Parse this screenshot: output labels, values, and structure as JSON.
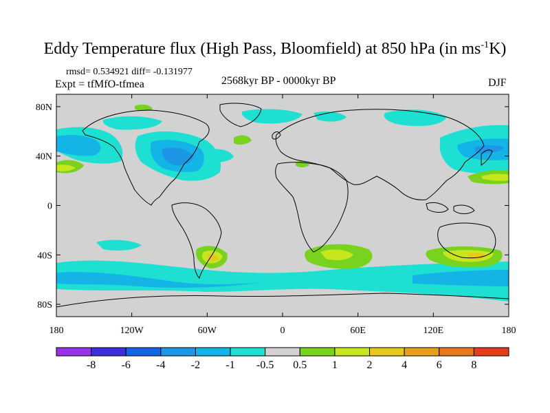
{
  "title": {
    "main": "Eddy Temperature flux (High Pass, Bloomfield) at 850 hPa (in ms",
    "sup": "-1",
    "unit_tail": "K)"
  },
  "stats_line": "rmsd= 0.534921 diff= -0.131977",
  "expt_line": "Expt = tfMfO-tfmea",
  "period": "2568kyr BP - 0000kyr BP",
  "season": "DJF",
  "axes": {
    "lat_ticks": [
      {
        "value": 80,
        "label": "80N"
      },
      {
        "value": 40,
        "label": "40N"
      },
      {
        "value": 0,
        "label": "0"
      },
      {
        "value": -40,
        "label": "40S"
      },
      {
        "value": -80,
        "label": "80S"
      }
    ],
    "lon_ticks": [
      {
        "value": -180,
        "label": "180"
      },
      {
        "value": -120,
        "label": "120W"
      },
      {
        "value": -60,
        "label": "60W"
      },
      {
        "value": 0,
        "label": "0"
      },
      {
        "value": 60,
        "label": "60E"
      },
      {
        "value": 120,
        "label": "120E"
      },
      {
        "value": 180,
        "label": "180"
      }
    ],
    "lon_range": [
      -180,
      180
    ],
    "lat_range": [
      -90,
      90
    ]
  },
  "colorbar": {
    "colors": [
      "#9932e6",
      "#3b2fdc",
      "#1664e6",
      "#1e96e6",
      "#14b4e6",
      "#1ee0d2",
      "#d2d2d2",
      "#78d21e",
      "#c8e61e",
      "#e6c81e",
      "#e6a01e",
      "#e6781e",
      "#e63c1e"
    ],
    "labels": [
      "-8",
      "-6",
      "-4",
      "-2",
      "-1",
      "-0.5",
      "0.5",
      "1",
      "2",
      "4",
      "6",
      "8"
    ]
  },
  "land_color": "#d2d2d2"
}
